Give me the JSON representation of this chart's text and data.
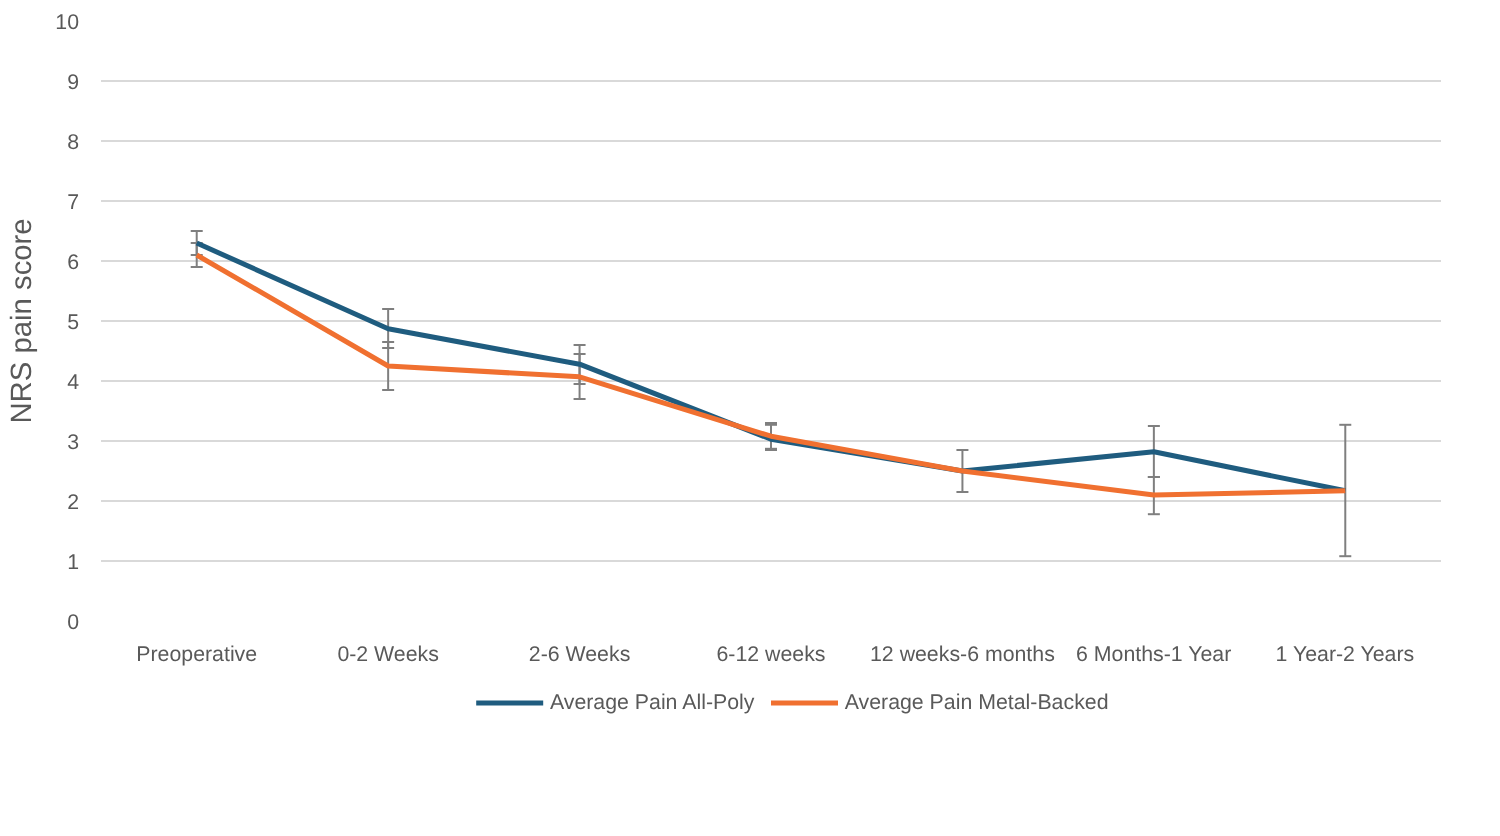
{
  "chart_data": {
    "type": "line",
    "ylabel": "NRS pain score",
    "categories": [
      "Preoperative",
      "0-2 Weeks",
      "2-6 Weeks",
      "6-12 weeks",
      "12 weeks-6 months",
      "6 Months-1 Year",
      "1 Year-2 Years"
    ],
    "series": [
      {
        "name": "Average  Pain All-Poly",
        "color": "#1f5c7f",
        "values": [
          6.3,
          4.87,
          4.28,
          3.03,
          2.5,
          2.82,
          2.17
        ],
        "errors": [
          [
            6.1,
            6.5
          ],
          [
            4.55,
            5.2
          ],
          [
            3.95,
            4.6
          ],
          [
            2.85,
            3.27
          ],
          [
            2.15,
            2.85
          ],
          [
            2.4,
            3.25
          ],
          [
            1.08,
            3.27
          ]
        ]
      },
      {
        "name": "Average Pain Metal-Backed",
        "color": "#f07030",
        "values": [
          6.1,
          4.25,
          4.07,
          3.08,
          2.5,
          2.1,
          2.17
        ],
        "errors": [
          [
            5.9,
            6.3
          ],
          [
            3.85,
            4.65
          ],
          [
            3.7,
            4.45
          ],
          [
            2.87,
            3.3
          ],
          null,
          [
            1.78,
            2.4
          ],
          null
        ]
      }
    ],
    "ylim": [
      0,
      10
    ],
    "yticks": [
      0,
      1,
      2,
      3,
      4,
      5,
      6,
      7,
      8,
      9,
      10
    ],
    "grid": "y",
    "legend": "bottom",
    "marker": "none",
    "line_style": "solid"
  }
}
